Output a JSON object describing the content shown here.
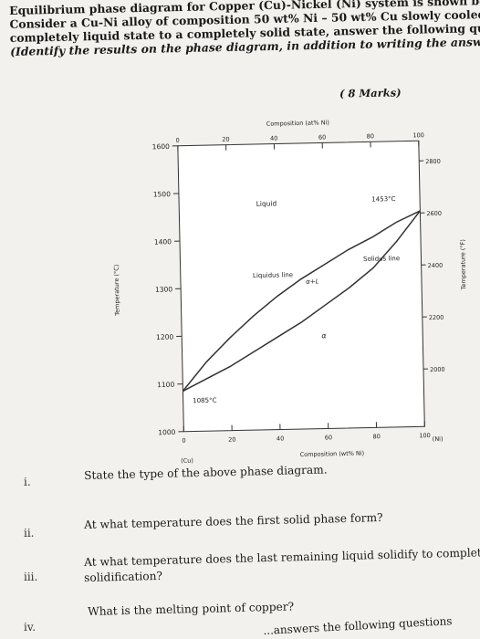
{
  "intro": {
    "line1": "Equilibrium phase diagram for Copper (Cu)-Nickel (Ni) system is shown below.",
    "line2": "Consider a Cu-Ni alloy of composition 50 wt% Ni – 50 wt% Cu slowly cooled from a",
    "line3": "completely liquid state to a completely solid state, answer the following questions:",
    "line4": "(Identify the results on the phase diagram, in addition to writing the answer below)",
    "marks": "( 8 Marks)"
  },
  "chart_data": {
    "type": "line",
    "title": "",
    "top_axis_label": "Composition (at% Ni)",
    "bottom_axis_label": "Composition (wt% Ni)",
    "left_axis_label": "Temperature (°C)",
    "right_axis_label": "Temperature (°F)",
    "left_ticks": [
      "1600",
      "1500",
      "1400",
      "1300",
      "1200",
      "1100",
      "1000"
    ],
    "right_ticks": [
      "2800",
      "2600",
      "2400",
      "2200",
      "2000"
    ],
    "top_ticks": [
      "0",
      "20",
      "40",
      "60",
      "80",
      "100"
    ],
    "bottom_ticks": [
      "0",
      "20",
      "40",
      "60",
      "80",
      "100"
    ],
    "bottom_left_note": "(Cu)",
    "bottom_right_note": "(Ni)",
    "xlim": [
      0,
      100
    ],
    "ylim": [
      1000,
      1600
    ],
    "region_labels": {
      "liquid": "Liquid",
      "two_phase": "α+L",
      "solid": "α"
    },
    "curve_labels": {
      "liquidus": "Liquidus line",
      "solidus": "Solidus line"
    },
    "annotations": {
      "cu_melting": "1085°C",
      "ni_melting": "1453°C"
    },
    "series": [
      {
        "name": "Liquidus line",
        "x": [
          0,
          10,
          20,
          30,
          40,
          50,
          60,
          70,
          80,
          90,
          100
        ],
        "y": [
          1085,
          1145,
          1195,
          1240,
          1280,
          1315,
          1345,
          1375,
          1400,
          1430,
          1453
        ]
      },
      {
        "name": "Solidus line",
        "x": [
          0,
          10,
          20,
          30,
          40,
          50,
          60,
          70,
          80,
          90,
          100
        ],
        "y": [
          1085,
          1110,
          1135,
          1165,
          1195,
          1225,
          1260,
          1295,
          1335,
          1390,
          1453
        ]
      }
    ]
  },
  "questions": [
    {
      "num": "i.",
      "text": "State the type of the above phase diagram."
    },
    {
      "num": "ii.",
      "text": "At what temperature does the first solid phase form?"
    },
    {
      "num": "iii.",
      "text": "At what temperature does the last remaining liquid solidify to complete",
      "text2": "solidification?"
    },
    {
      "num": "iv.",
      "text": "What is the melting point of copper?"
    }
  ],
  "footer_fragment": "...answers the following questions"
}
